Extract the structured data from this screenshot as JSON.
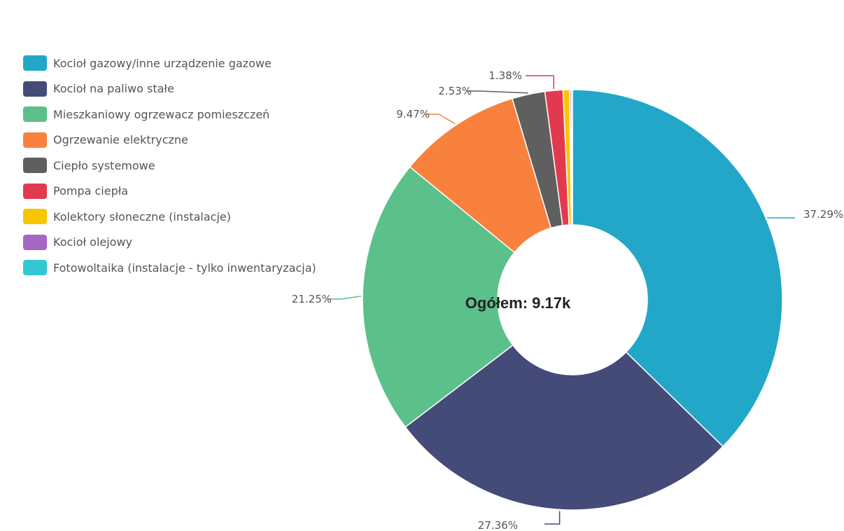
{
  "chart_data": {
    "type": "pie",
    "variant": "donut",
    "categories": [
      "Kocioł gazowy/inne urządzenie gazowe",
      "Kocioł na paliwo stałe",
      "Mieszkaniowy ogrzewacz pomieszczeń",
      "Ogrzewanie elektryczne",
      "Ciepło systemowe",
      "Pompa ciepła",
      "Kolektory słoneczne (instalacje)",
      "Kocioł olejowy",
      "Fotowoltaika (instalacje - tylko inwentaryzacja)"
    ],
    "values": [
      37.29,
      27.36,
      21.25,
      9.47,
      2.53,
      1.38,
      0.5,
      0.12,
      0.1
    ],
    "data_labels": [
      "37.29%",
      "27.36%",
      "21.25%",
      "9.47%",
      "2.53%",
      "1.38%",
      "",
      "",
      ""
    ],
    "colors": [
      "#22a7c9",
      "#444b78",
      "#5cc08a",
      "#f9813e",
      "#5f5f5f",
      "#e3394f",
      "#f7c600",
      "#a566c4",
      "#33c6d3"
    ],
    "center_label": "Ogółem: 9.17k",
    "legend_position": "top-left",
    "title": ""
  }
}
